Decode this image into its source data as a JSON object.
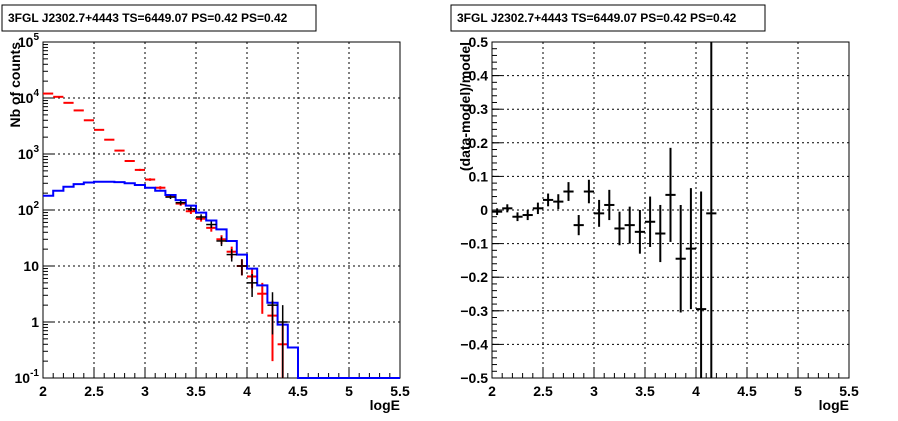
{
  "chart_data": [
    {
      "type": "histogram",
      "title": "3FGL J2302.7+4443 TS=6449.07 PS=0.42 PS=0.42",
      "xlabel": "logE",
      "ylabel": "Nb of counts",
      "xlim": [
        2,
        5.5
      ],
      "ylim": [
        0.1,
        100000
      ],
      "log_y": true,
      "grid": true,
      "x_ticks": [
        "2",
        "2.5",
        "3",
        "3.5",
        "4",
        "4.5",
        "5",
        "5.5"
      ],
      "y_ticks": [
        {
          "base": "10",
          "exp": "-1"
        },
        {
          "base": "1",
          "exp": ""
        },
        {
          "base": "10",
          "exp": ""
        },
        {
          "base": "10",
          "exp": "2"
        },
        {
          "base": "10",
          "exp": "3"
        },
        {
          "base": "10",
          "exp": "4"
        },
        {
          "base": "10",
          "exp": "5"
        }
      ],
      "bin_edges": [
        2.0,
        2.1,
        2.2,
        2.3,
        2.4,
        2.5,
        2.6,
        2.7,
        2.8,
        2.9,
        3.0,
        3.1,
        3.2,
        3.3,
        3.4,
        3.5,
        3.6,
        3.7,
        3.8,
        3.9,
        4.0,
        4.1,
        4.2,
        4.3,
        4.4,
        4.5,
        4.6,
        4.7,
        4.8,
        4.9,
        5.0,
        5.1,
        5.2,
        5.3,
        5.4,
        5.5
      ],
      "series": [
        {
          "color": "#ff0000",
          "style": "step",
          "values": [
            12000,
            10500,
            8200,
            6000,
            4000,
            2700,
            1800,
            1150,
            750,
            520,
            350,
            250,
            180,
            130,
            95,
            70,
            48,
            30,
            18,
            10,
            6.5,
            3.2,
            1.3,
            0.4,
            0,
            0,
            0,
            0,
            0,
            0,
            0,
            0,
            0,
            0,
            0
          ],
          "errors": [
            110,
            100,
            90,
            78,
            63,
            52,
            42,
            34,
            27,
            23,
            19,
            16,
            13,
            11,
            10,
            8,
            7,
            5.5,
            4.2,
            3.2,
            2.5,
            1.8,
            1.1,
            0.6,
            0,
            0,
            0,
            0,
            0,
            0,
            0,
            0,
            0,
            0,
            0
          ]
        },
        {
          "color": "#0000ff",
          "style": "step",
          "values": [
            180,
            220,
            260,
            290,
            310,
            320,
            320,
            315,
            300,
            280,
            250,
            220,
            185,
            150,
            120,
            90,
            65,
            45,
            28,
            16,
            9,
            4.5,
            2.2,
            0.9,
            0.35,
            0.1,
            0.1,
            0.1,
            0.1,
            0.1,
            0.1,
            0.1,
            0.1,
            0.1,
            0.1
          ]
        },
        {
          "color": "#000000",
          "style": "points",
          "x": [
            3.25,
            3.35,
            3.45,
            3.55,
            3.65,
            3.75,
            3.85,
            3.95,
            4.05,
            4.25,
            4.35
          ],
          "y": [
            170,
            135,
            105,
            75,
            55,
            28,
            16,
            10,
            5,
            2,
            1
          ],
          "yerr": [
            13,
            11.6,
            10.2,
            8.7,
            7.4,
            5.3,
            4,
            3.2,
            2.2,
            1.4,
            1
          ]
        }
      ]
    },
    {
      "type": "scatter",
      "title": "3FGL J2302.7+4443 TS=6449.07 PS=0.42 PS=0.42",
      "xlabel": "logE",
      "ylabel": "(data-model)/model",
      "xlim": [
        2,
        5.5
      ],
      "ylim": [
        -0.5,
        0.5
      ],
      "grid": true,
      "x_ticks": [
        "2",
        "2.5",
        "3",
        "3.5",
        "4",
        "4.5",
        "5",
        "5.5"
      ],
      "y_ticks": [
        "−0.5",
        "−0.4",
        "−0.3",
        "−0.2",
        "−0.1",
        "0",
        "0.1",
        "0.2",
        "0.3",
        "0.4",
        "0.5"
      ],
      "y_tick_values": [
        -0.5,
        -0.4,
        -0.3,
        -0.2,
        -0.1,
        0,
        0.1,
        0.2,
        0.3,
        0.4,
        0.5
      ],
      "series": [
        {
          "color": "#000000",
          "x": [
            2.05,
            2.15,
            2.25,
            2.35,
            2.45,
            2.55,
            2.65,
            2.75,
            2.85,
            2.95,
            3.05,
            3.15,
            3.25,
            3.35,
            3.45,
            3.55,
            3.65,
            3.75,
            3.85,
            3.95,
            4.05,
            4.15
          ],
          "y": [
            -0.005,
            0.005,
            -0.02,
            -0.015,
            0.005,
            0.03,
            0.025,
            0.055,
            -0.045,
            0.055,
            -0.01,
            0.015,
            -0.055,
            -0.045,
            -0.065,
            -0.035,
            -0.07,
            0.045,
            -0.145,
            -0.115,
            -0.295,
            -0.01
          ],
          "yerr": [
            0.01,
            0.012,
            0.013,
            0.015,
            0.017,
            0.019,
            0.022,
            0.028,
            0.03,
            0.035,
            0.04,
            0.045,
            0.05,
            0.055,
            0.065,
            0.075,
            0.085,
            0.14,
            0.16,
            0.18,
            0.35,
            0.55
          ]
        }
      ]
    }
  ]
}
